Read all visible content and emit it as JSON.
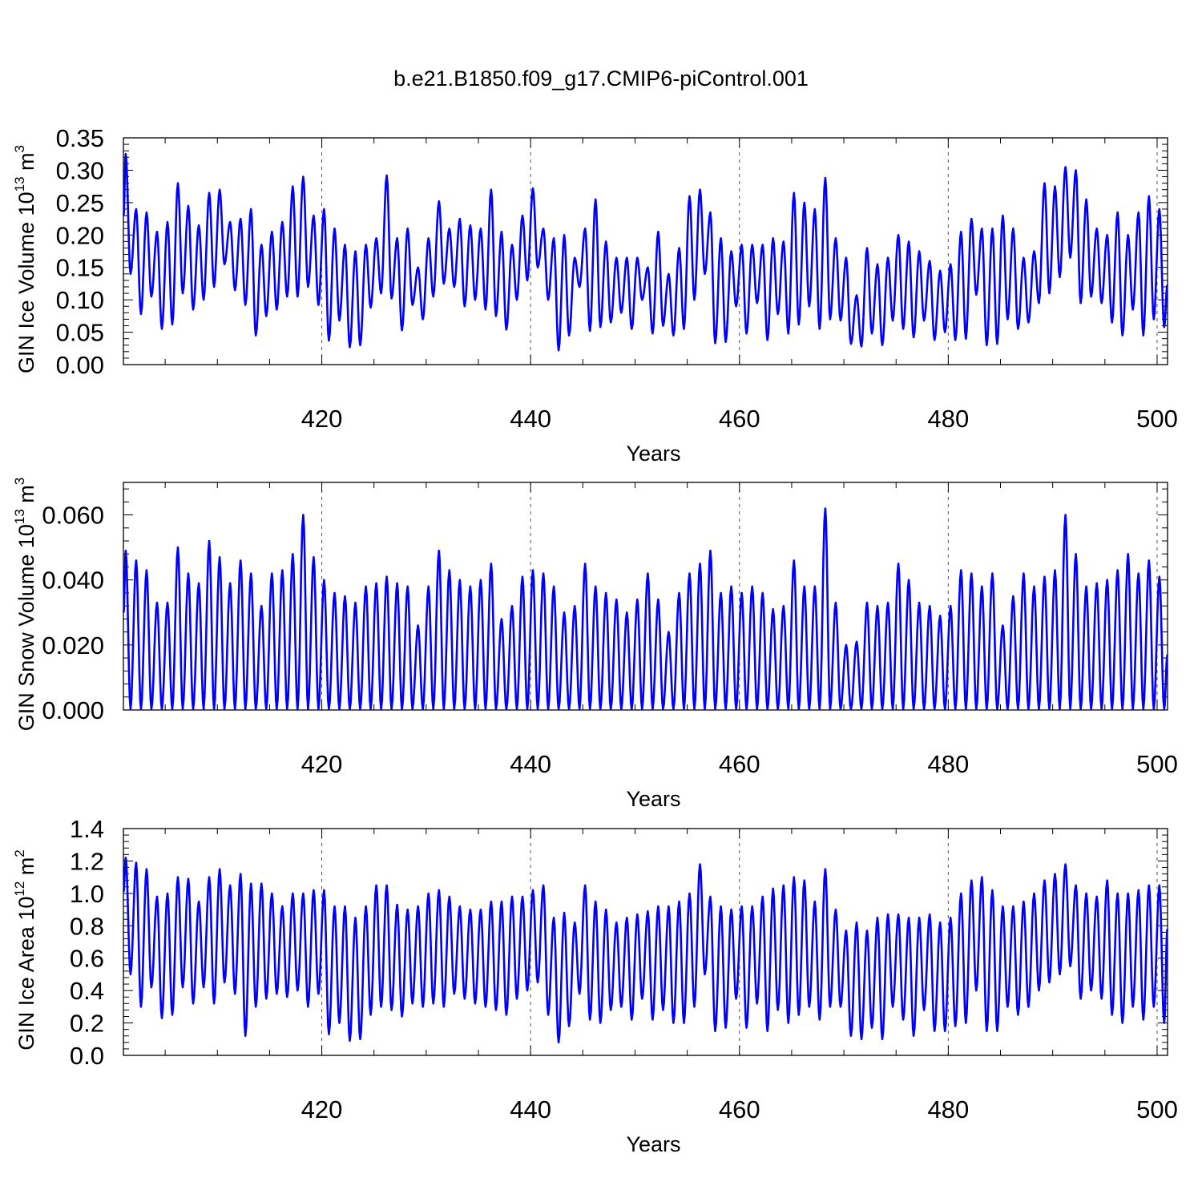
{
  "title": "b.e21.B1850.f09_g17.CMIP6-piControl.001",
  "style": {
    "line_color": "#0000ff",
    "grid_color": "#555555"
  },
  "chart_data": [
    {
      "type": "line",
      "id": "ice-volume",
      "ylabel": {
        "prefix": "GIN Ice Volume 10",
        "exp": "13",
        "mid": " m",
        "exp2": "3"
      },
      "xlabel": "Years",
      "xlim": [
        401,
        501
      ],
      "ylim": [
        0.0,
        0.35
      ],
      "xticks": [
        420,
        440,
        460,
        480,
        500
      ],
      "xtick_labels": [
        "420",
        "440",
        "460",
        "480",
        "500"
      ],
      "yticks": [
        0.0,
        0.05,
        0.1,
        0.15,
        0.2,
        0.25,
        0.3,
        0.35
      ],
      "ytick_labels": [
        "0.00",
        "0.05",
        "0.10",
        "0.15",
        "0.20",
        "0.25",
        "0.30",
        "0.35"
      ],
      "grid": "vertical dashed at major x ticks",
      "series": [
        {
          "annual_max": [
            0.325,
            0.24,
            0.235,
            0.205,
            0.22,
            0.28,
            0.245,
            0.215,
            0.265,
            0.27,
            0.22,
            0.225,
            0.24,
            0.185,
            0.205,
            0.22,
            0.275,
            0.29,
            0.23,
            0.24,
            0.21,
            0.185,
            0.175,
            0.185,
            0.195,
            0.292,
            0.195,
            0.21,
            0.15,
            0.195,
            0.252,
            0.21,
            0.225,
            0.215,
            0.21,
            0.27,
            0.205,
            0.185,
            0.23,
            0.272,
            0.21,
            0.195,
            0.2,
            0.165,
            0.21,
            0.255,
            0.19,
            0.165,
            0.165,
            0.165,
            0.15,
            0.205,
            0.14,
            0.18,
            0.26,
            0.27,
            0.235,
            0.195,
            0.175,
            0.185,
            0.185,
            0.185,
            0.195,
            0.19,
            0.265,
            0.25,
            0.24,
            0.288,
            0.195,
            0.165,
            0.107,
            0.18,
            0.155,
            0.165,
            0.2,
            0.19,
            0.175,
            0.16,
            0.145,
            0.155,
            0.205,
            0.225,
            0.21,
            0.21,
            0.23,
            0.21,
            0.165,
            0.175,
            0.28,
            0.275,
            0.305,
            0.3,
            0.255,
            0.21,
            0.2,
            0.235,
            0.2,
            0.235,
            0.26,
            0.24
          ],
          "annual_min": [
            0.14,
            0.078,
            0.105,
            0.055,
            0.062,
            0.11,
            0.085,
            0.1,
            0.12,
            0.155,
            0.115,
            0.092,
            0.045,
            0.075,
            0.085,
            0.105,
            0.105,
            0.12,
            0.092,
            0.037,
            0.068,
            0.027,
            0.03,
            0.088,
            0.11,
            0.102,
            0.053,
            0.092,
            0.07,
            0.105,
            0.125,
            0.12,
            0.09,
            0.1,
            0.085,
            0.075,
            0.054,
            0.1,
            0.13,
            0.15,
            0.1,
            0.022,
            0.045,
            0.12,
            0.052,
            0.058,
            0.065,
            0.08,
            0.055,
            0.1,
            0.048,
            0.06,
            0.045,
            0.055,
            0.1,
            0.14,
            0.033,
            0.035,
            0.09,
            0.048,
            0.095,
            0.038,
            0.078,
            0.048,
            0.062,
            0.09,
            0.055,
            0.07,
            0.068,
            0.032,
            0.028,
            0.048,
            0.03,
            0.068,
            0.055,
            0.042,
            0.068,
            0.038,
            0.05,
            0.038,
            0.04,
            0.108,
            0.03,
            0.032,
            0.07,
            0.055,
            0.065,
            0.095,
            0.11,
            0.135,
            0.165,
            0.095,
            0.105,
            0.095,
            0.065,
            0.045,
            0.085,
            0.045,
            0.07,
            0.058
          ],
          "start_value": 0.23,
          "end_value": 0.123
        }
      ]
    },
    {
      "type": "line",
      "id": "snow-volume",
      "ylabel": {
        "prefix": "GIN Snow Volume 10",
        "exp": "13",
        "mid": " m",
        "exp2": "3"
      },
      "xlabel": "Years",
      "xlim": [
        401,
        501
      ],
      "ylim": [
        0.0,
        0.07
      ],
      "xticks": [
        420,
        440,
        460,
        480,
        500
      ],
      "xtick_labels": [
        "420",
        "440",
        "460",
        "480",
        "500"
      ],
      "yticks": [
        0.0,
        0.02,
        0.04,
        0.06
      ],
      "ytick_labels": [
        "0.000",
        "0.020",
        "0.040",
        "0.060"
      ],
      "grid": "vertical dashed at major x ticks",
      "series": [
        {
          "annual_max": [
            0.049,
            0.046,
            0.043,
            0.033,
            0.033,
            0.05,
            0.042,
            0.039,
            0.052,
            0.047,
            0.039,
            0.046,
            0.042,
            0.032,
            0.042,
            0.043,
            0.048,
            0.06,
            0.047,
            0.04,
            0.036,
            0.035,
            0.033,
            0.038,
            0.039,
            0.041,
            0.039,
            0.038,
            0.026,
            0.038,
            0.049,
            0.043,
            0.04,
            0.038,
            0.04,
            0.045,
            0.028,
            0.032,
            0.041,
            0.043,
            0.042,
            0.038,
            0.03,
            0.032,
            0.045,
            0.038,
            0.036,
            0.034,
            0.03,
            0.034,
            0.042,
            0.034,
            0.024,
            0.036,
            0.042,
            0.045,
            0.049,
            0.036,
            0.038,
            0.036,
            0.038,
            0.036,
            0.031,
            0.032,
            0.046,
            0.038,
            0.038,
            0.062,
            0.033,
            0.02,
            0.021,
            0.033,
            0.032,
            0.033,
            0.045,
            0.04,
            0.033,
            0.032,
            0.029,
            0.032,
            0.043,
            0.042,
            0.038,
            0.042,
            0.026,
            0.035,
            0.042,
            0.038,
            0.041,
            0.043,
            0.06,
            0.048,
            0.038,
            0.039,
            0.04,
            0.043,
            0.048,
            0.042,
            0.046,
            0.041
          ],
          "annual_min": [
            0.0003
          ],
          "start_value": 0.03,
          "end_value": 0.017
        }
      ]
    },
    {
      "type": "line",
      "id": "ice-area",
      "ylabel": {
        "prefix": "GIN Ice Area 10",
        "exp": "12",
        "mid": " m",
        "exp2": "2"
      },
      "xlabel": "Years",
      "xlim": [
        401,
        501
      ],
      "ylim": [
        0.0,
        1.4
      ],
      "xticks": [
        420,
        440,
        460,
        480,
        500
      ],
      "xtick_labels": [
        "420",
        "440",
        "460",
        "480",
        "500"
      ],
      "yticks": [
        0.0,
        0.2,
        0.4,
        0.6,
        0.8,
        1.0,
        1.2,
        1.4
      ],
      "ytick_labels": [
        "0.0",
        "0.2",
        "0.4",
        "0.6",
        "0.8",
        "1.0",
        "1.2",
        "1.4"
      ],
      "grid": "vertical dashed at major x ticks",
      "series": [
        {
          "annual_max": [
            1.22,
            1.19,
            1.15,
            0.98,
            1.0,
            1.1,
            1.09,
            0.95,
            1.1,
            1.15,
            1.05,
            1.12,
            1.06,
            1.06,
            1.0,
            0.92,
            1.0,
            1.0,
            1.02,
            1.02,
            0.92,
            0.92,
            0.85,
            0.92,
            1.05,
            1.05,
            0.93,
            0.9,
            0.92,
            1.0,
            1.02,
            0.98,
            0.92,
            0.9,
            0.9,
            0.95,
            0.95,
            0.98,
            0.98,
            1.02,
            1.05,
            0.85,
            0.88,
            0.82,
            1.05,
            0.95,
            0.9,
            0.82,
            0.85,
            0.87,
            0.89,
            0.92,
            0.92,
            0.95,
            1.0,
            1.18,
            0.98,
            0.92,
            0.9,
            0.92,
            0.92,
            0.98,
            1.03,
            1.05,
            1.1,
            1.08,
            0.95,
            1.15,
            0.9,
            0.77,
            0.82,
            0.77,
            0.85,
            0.87,
            0.87,
            0.85,
            0.85,
            0.87,
            0.82,
            0.85,
            1.0,
            1.08,
            1.1,
            1.02,
            0.92,
            0.92,
            0.95,
            1.0,
            1.08,
            1.12,
            1.18,
            1.05,
            1.0,
            0.98,
            1.08,
            1.0,
            1.0,
            1.02,
            1.05,
            1.05
          ],
          "annual_min": [
            0.5,
            0.3,
            0.42,
            0.23,
            0.25,
            0.42,
            0.32,
            0.42,
            0.32,
            0.45,
            0.38,
            0.12,
            0.3,
            0.35,
            0.38,
            0.36,
            0.4,
            0.3,
            0.38,
            0.13,
            0.2,
            0.09,
            0.1,
            0.25,
            0.3,
            0.28,
            0.24,
            0.32,
            0.3,
            0.32,
            0.3,
            0.38,
            0.35,
            0.32,
            0.3,
            0.28,
            0.25,
            0.35,
            0.4,
            0.45,
            0.25,
            0.08,
            0.18,
            0.38,
            0.22,
            0.2,
            0.28,
            0.3,
            0.22,
            0.35,
            0.22,
            0.28,
            0.2,
            0.2,
            0.3,
            0.5,
            0.15,
            0.17,
            0.35,
            0.17,
            0.32,
            0.15,
            0.28,
            0.2,
            0.25,
            0.3,
            0.22,
            0.3,
            0.3,
            0.12,
            0.1,
            0.17,
            0.1,
            0.3,
            0.22,
            0.12,
            0.28,
            0.15,
            0.15,
            0.18,
            0.2,
            0.4,
            0.15,
            0.15,
            0.3,
            0.25,
            0.3,
            0.4,
            0.45,
            0.5,
            0.55,
            0.35,
            0.4,
            0.35,
            0.25,
            0.2,
            0.3,
            0.22,
            0.3,
            0.2
          ],
          "start_value": 1.01,
          "end_value": 0.78
        }
      ]
    }
  ]
}
